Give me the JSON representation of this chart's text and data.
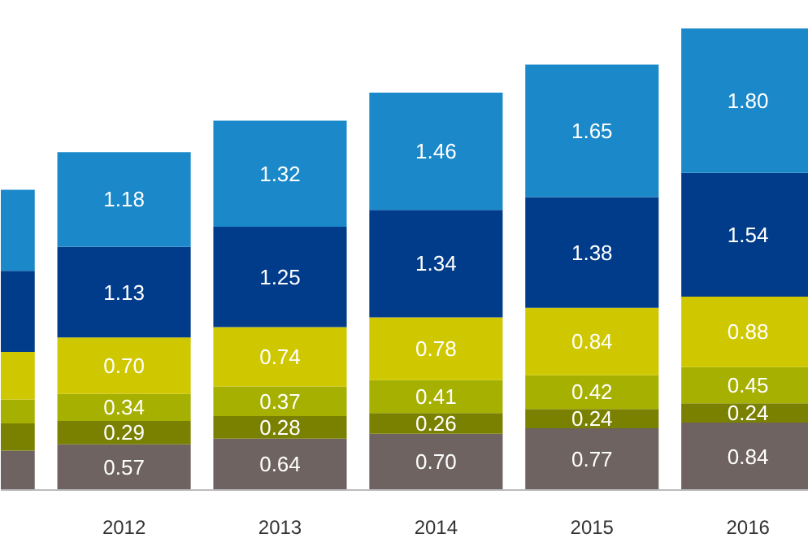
{
  "chart_data": {
    "type": "bar",
    "stacked": true,
    "categories": [
      null,
      "2012",
      "2013",
      "2014",
      "2015",
      "2016"
    ],
    "tick_labels": "x",
    "series": [
      {
        "color": "#6e6360",
        "values": [
          0.49,
          0.57,
          0.64,
          0.7,
          0.77,
          0.84
        ],
        "value_labels": [
          null,
          "0.57",
          "0.64",
          "0.70",
          "0.77",
          "0.84"
        ]
      },
      {
        "color": "#7a8000",
        "values": [
          0.34,
          0.29,
          0.28,
          0.26,
          0.24,
          0.24
        ],
        "value_labels": [
          null,
          "0.29",
          "0.28",
          "0.26",
          "0.24",
          "0.24"
        ]
      },
      {
        "color": "#a5b000",
        "values": [
          0.3,
          0.34,
          0.37,
          0.41,
          0.42,
          0.45
        ],
        "value_labels": [
          null,
          "0.34",
          "0.37",
          "0.41",
          "0.42",
          "0.45"
        ]
      },
      {
        "color": "#cfc800",
        "values": [
          0.59,
          0.7,
          0.74,
          0.78,
          0.84,
          0.88
        ],
        "value_labels": [
          null,
          "0.70",
          "0.74",
          "0.78",
          "0.84",
          "0.88"
        ]
      },
      {
        "color": "#003c8a",
        "values": [
          1.01,
          1.13,
          1.25,
          1.34,
          1.38,
          1.54
        ],
        "value_labels": [
          null,
          "1.13",
          "1.25",
          "1.34",
          "1.38",
          "1.54"
        ]
      },
      {
        "color": "#1a88c9",
        "values": [
          1.01,
          1.18,
          1.32,
          1.46,
          1.65,
          1.8
        ],
        "value_labels": [
          null,
          "1.18",
          "1.32",
          "1.46",
          "1.65",
          "1.80"
        ]
      }
    ]
  }
}
